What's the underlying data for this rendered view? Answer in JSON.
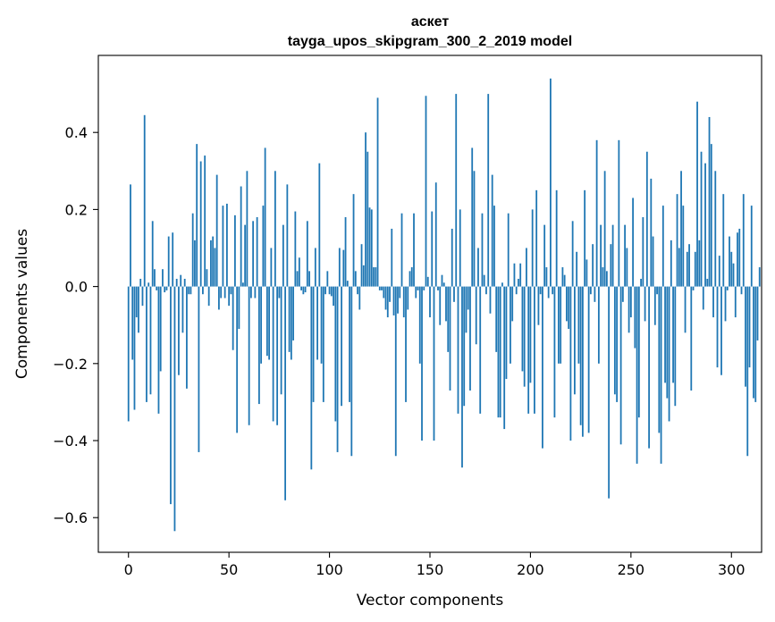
{
  "chart_data": {
    "type": "bar",
    "title_line1": "аскет",
    "title_line2": "tayga_upos_skipgram_300_2_2019 model",
    "xlabel": "Vector components",
    "ylabel": "Components values",
    "xlim": [
      -15,
      315
    ],
    "ylim": [
      -0.69,
      0.6
    ],
    "x_ticks": [
      0,
      50,
      100,
      150,
      200,
      250,
      300
    ],
    "x_tick_labels": [
      "0",
      "50",
      "100",
      "150",
      "200",
      "250",
      "300"
    ],
    "y_ticks": [
      -0.6,
      -0.4,
      -0.2,
      0.0,
      0.2,
      0.4
    ],
    "y_tick_labels": [
      "−0.6",
      "−0.4",
      "−0.2",
      "0.0",
      "0.2",
      "0.4"
    ],
    "bar_color": "#1f77b4",
    "values": [
      -0.35,
      0.265,
      -0.19,
      -0.32,
      -0.08,
      -0.12,
      0.02,
      -0.05,
      0.445,
      -0.3,
      0.01,
      -0.28,
      0.17,
      0.045,
      -0.01,
      -0.33,
      -0.22,
      0.045,
      -0.015,
      -0.01,
      0.13,
      -0.565,
      0.14,
      -0.635,
      0.02,
      -0.23,
      0.03,
      -0.12,
      0.02,
      -0.265,
      -0.02,
      -0.02,
      0.19,
      0.12,
      0.37,
      -0.43,
      0.325,
      -0.02,
      0.34,
      0.045,
      -0.05,
      0.12,
      0.13,
      0.1,
      0.29,
      -0.06,
      -0.03,
      0.21,
      -0.03,
      0.215,
      -0.05,
      -0.02,
      -0.165,
      0.185,
      -0.38,
      -0.11,
      0.26,
      0.01,
      0.16,
      0.3,
      -0.36,
      -0.03,
      0.17,
      -0.03,
      0.18,
      -0.305,
      -0.2,
      0.21,
      0.36,
      -0.18,
      -0.19,
      0.1,
      -0.35,
      0.3,
      -0.36,
      -0.03,
      -0.28,
      0.16,
      -0.555,
      0.265,
      -0.17,
      -0.19,
      -0.14,
      0.195,
      0.04,
      0.075,
      -0.01,
      -0.02,
      -0.015,
      0.17,
      0.04,
      -0.475,
      -0.3,
      0.1,
      -0.19,
      0.32,
      -0.2,
      -0.3,
      -0.02,
      0.04,
      -0.02,
      -0.025,
      -0.05,
      -0.35,
      -0.43,
      0.1,
      -0.31,
      0.095,
      0.18,
      0.015,
      -0.3,
      -0.44,
      0.24,
      0.04,
      -0.02,
      -0.06,
      0.11,
      0.055,
      0.4,
      0.35,
      0.205,
      0.2,
      0.05,
      0.05,
      0.49,
      -0.01,
      -0.01,
      -0.03,
      -0.06,
      -0.08,
      -0.04,
      0.15,
      -0.075,
      -0.44,
      -0.07,
      -0.03,
      0.19,
      -0.08,
      -0.3,
      -0.06,
      0.04,
      0.05,
      0.19,
      -0.03,
      -0.01,
      -0.2,
      -0.4,
      -0.01,
      0.495,
      0.025,
      -0.08,
      0.195,
      -0.4,
      0.27,
      -0.01,
      -0.1,
      0.03,
      0.01,
      -0.09,
      -0.17,
      -0.27,
      0.15,
      -0.04,
      0.5,
      -0.33,
      0.2,
      -0.47,
      -0.31,
      -0.12,
      -0.06,
      -0.27,
      0.36,
      0.3,
      -0.15,
      0.1,
      -0.33,
      0.19,
      0.03,
      -0.02,
      0.5,
      -0.07,
      0.29,
      0.21,
      -0.17,
      -0.34,
      -0.34,
      0.01,
      -0.37,
      -0.24,
      0.19,
      -0.2,
      -0.09,
      0.06,
      -0.02,
      0.02,
      0.06,
      -0.22,
      -0.26,
      0.1,
      -0.33,
      -0.25,
      0.2,
      -0.33,
      0.25,
      -0.1,
      -0.02,
      -0.42,
      0.16,
      0.05,
      -0.03,
      0.54,
      -0.02,
      -0.34,
      0.25,
      -0.2,
      -0.2,
      0.05,
      0.03,
      -0.09,
      -0.11,
      -0.4,
      0.17,
      -0.28,
      0.09,
      -0.2,
      -0.36,
      -0.39,
      0.25,
      0.07,
      -0.38,
      -0.02,
      0.11,
      -0.04,
      0.38,
      -0.2,
      0.16,
      0.05,
      0.3,
      0.04,
      -0.55,
      0.11,
      0.16,
      -0.28,
      -0.3,
      0.38,
      -0.41,
      -0.04,
      0.16,
      0.1,
      -0.12,
      -0.08,
      0.23,
      -0.16,
      -0.46,
      -0.34,
      0.02,
      0.18,
      -0.09,
      0.35,
      -0.42,
      0.28,
      0.13,
      -0.1,
      -0.02,
      -0.38,
      -0.46,
      0.21,
      -0.25,
      -0.29,
      -0.35,
      0.12,
      -0.25,
      -0.31,
      0.24,
      0.1,
      0.3,
      0.21,
      -0.12,
      0.09,
      0.11,
      -0.27,
      -0.01,
      0.09,
      0.48,
      0.12,
      0.35,
      -0.06,
      0.32,
      0.02,
      0.44,
      0.37,
      -0.08,
      0.3,
      -0.21,
      0.08,
      -0.23,
      0.24,
      -0.09,
      -0.01,
      0.13,
      0.09,
      0.06,
      -0.08,
      0.14,
      0.15,
      -0.02,
      0.24,
      -0.26,
      -0.44,
      -0.21,
      0.21,
      -0.29,
      -0.3,
      -0.14,
      0.05
    ]
  }
}
